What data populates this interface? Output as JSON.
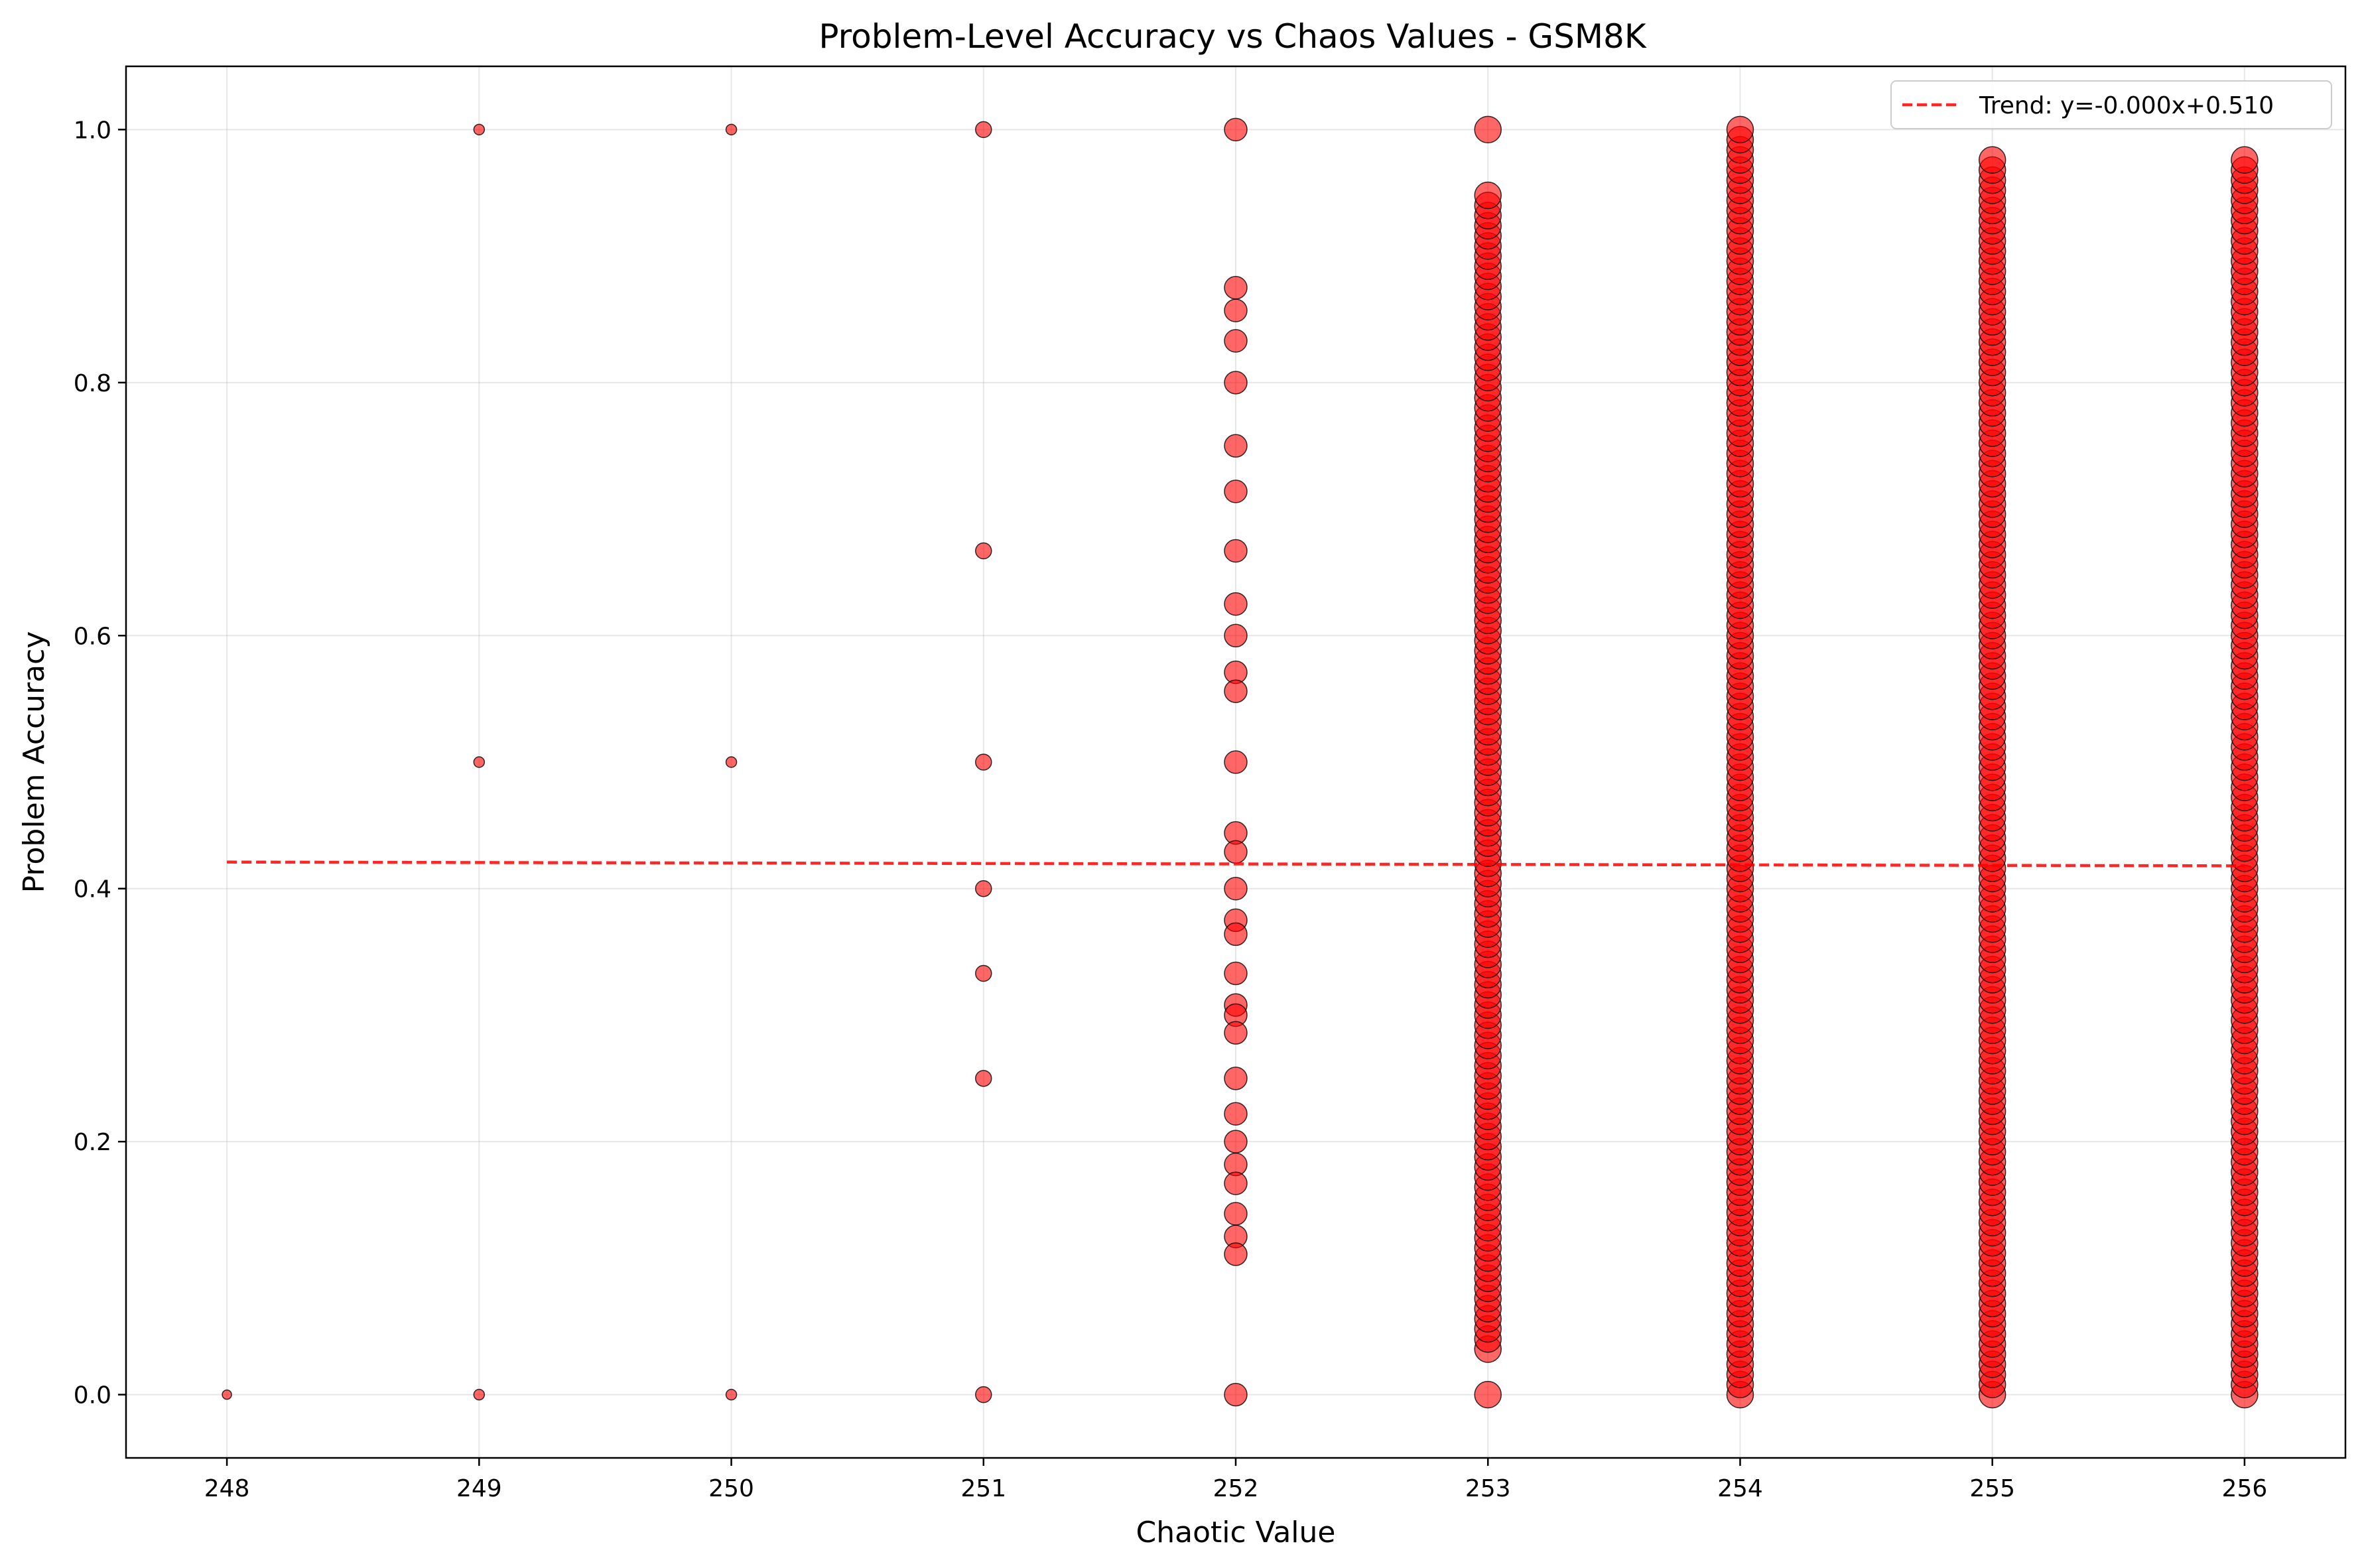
{
  "chart_data": {
    "type": "scatter",
    "title": "Problem-Level Accuracy vs Chaos Values - GSM8K",
    "xlabel": "Chaotic Value",
    "ylabel": "Problem Accuracy",
    "xlim": [
      247.6,
      256.4
    ],
    "ylim": [
      -0.05,
      1.05
    ],
    "xticks": [
      248,
      249,
      250,
      251,
      252,
      253,
      254,
      255,
      256
    ],
    "xtick_labels": [
      "248",
      "249",
      "250",
      "251",
      "252",
      "253",
      "254",
      "255",
      "256"
    ],
    "yticks": [
      0.0,
      0.2,
      0.4,
      0.6,
      0.8,
      1.0
    ],
    "ytick_labels": [
      "0.0",
      "0.2",
      "0.4",
      "0.6",
      "0.8",
      "1.0"
    ],
    "grid": true,
    "legend_position": "upper-right",
    "marker_color": "#ff0000",
    "marker_edge_color": "#000000",
    "points": [
      {
        "x": 248,
        "y": 0.0
      },
      {
        "x": 249,
        "y": 1.0
      },
      {
        "x": 249,
        "y": 0.5
      },
      {
        "x": 249,
        "y": 0.0
      },
      {
        "x": 250,
        "y": 1.0
      },
      {
        "x": 250,
        "y": 0.5
      },
      {
        "x": 250,
        "y": 0.0
      },
      {
        "x": 251,
        "y": 1.0
      },
      {
        "x": 251,
        "y": 0.667
      },
      {
        "x": 251,
        "y": 0.5
      },
      {
        "x": 251,
        "y": 0.4
      },
      {
        "x": 251,
        "y": 0.333
      },
      {
        "x": 251,
        "y": 0.25
      },
      {
        "x": 251,
        "y": 0.0
      },
      {
        "x": 252,
        "y": 1.0
      },
      {
        "x": 252,
        "y": 0.875
      },
      {
        "x": 252,
        "y": 0.857
      },
      {
        "x": 252,
        "y": 0.833
      },
      {
        "x": 252,
        "y": 0.8
      },
      {
        "x": 252,
        "y": 0.75
      },
      {
        "x": 252,
        "y": 0.714
      },
      {
        "x": 252,
        "y": 0.667
      },
      {
        "x": 252,
        "y": 0.625
      },
      {
        "x": 252,
        "y": 0.6
      },
      {
        "x": 252,
        "y": 0.571
      },
      {
        "x": 252,
        "y": 0.556
      },
      {
        "x": 252,
        "y": 0.5
      },
      {
        "x": 252,
        "y": 0.444
      },
      {
        "x": 252,
        "y": 0.429
      },
      {
        "x": 252,
        "y": 0.4
      },
      {
        "x": 252,
        "y": 0.375
      },
      {
        "x": 252,
        "y": 0.364
      },
      {
        "x": 252,
        "y": 0.333
      },
      {
        "x": 252,
        "y": 0.308
      },
      {
        "x": 252,
        "y": 0.3
      },
      {
        "x": 252,
        "y": 0.286
      },
      {
        "x": 252,
        "y": 0.25
      },
      {
        "x": 252,
        "y": 0.222
      },
      {
        "x": 252,
        "y": 0.2
      },
      {
        "x": 252,
        "y": 0.182
      },
      {
        "x": 252,
        "y": 0.167
      },
      {
        "x": 252,
        "y": 0.143
      },
      {
        "x": 252,
        "y": 0.125
      },
      {
        "x": 252,
        "y": 0.111
      },
      {
        "x": 252,
        "y": 0.0
      }
    ],
    "dense_columns": [
      {
        "x": 253,
        "y_range": [
          0.036,
          0.955
        ],
        "extra_y": [
          1.0,
          0.0
        ]
      },
      {
        "x": 254,
        "y_range": [
          0.0,
          1.0
        ],
        "extra_y": []
      },
      {
        "x": 255,
        "y_range": [
          0.0,
          0.98
        ],
        "extra_y": []
      },
      {
        "x": 256,
        "y_range": [
          0.0,
          0.98
        ],
        "extra_y": []
      }
    ],
    "trend_line": {
      "label": "Trend: y=-0.000x+0.510",
      "x": [
        248,
        256
      ],
      "y": [
        0.421,
        0.418
      ],
      "color": "#ff0000",
      "style": "dashed"
    }
  }
}
